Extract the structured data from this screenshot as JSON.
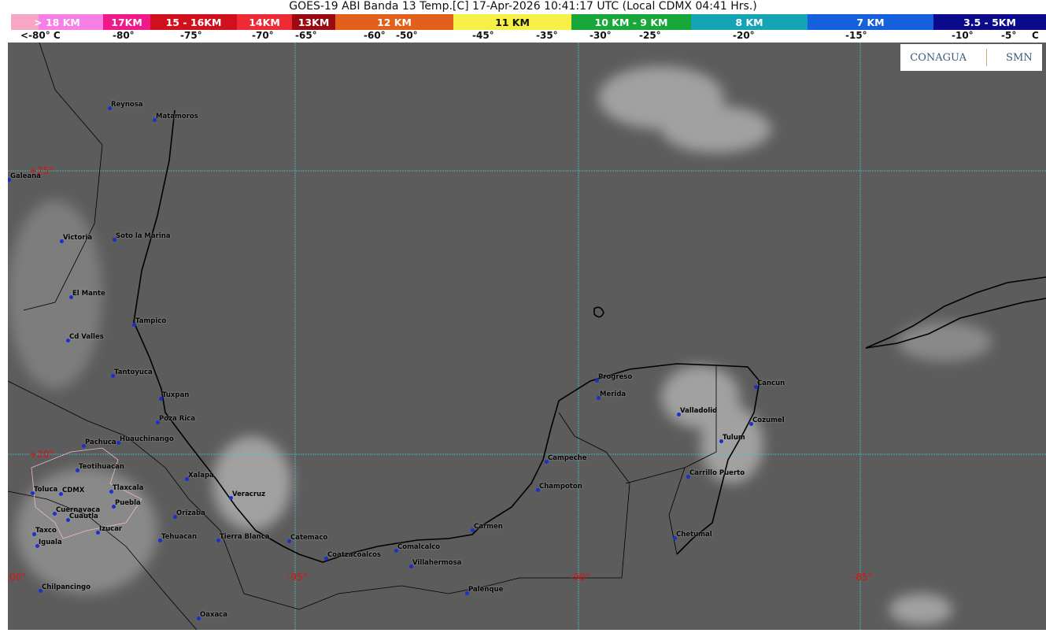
{
  "title": "GOES-19 ABI Banda 13 Temp.[C] 17-Apr-2026 10:41:17 UTC (Local CDMX  04:41 Hrs.)",
  "legend": [
    {
      "label": "> 18 KM",
      "color": "#f77fe6",
      "w": 117
    },
    {
      "label": "17KM",
      "color": "#f0198a",
      "w": 60
    },
    {
      "label": "15 - 16KM",
      "color": "#d0101c",
      "w": 110
    },
    {
      "label": "14KM",
      "color": "#ee2a34",
      "w": 70
    },
    {
      "label": "13KM",
      "color": "#9a0a10",
      "w": 55
    },
    {
      "label": "12 KM",
      "color": "#e3601c",
      "w": 150
    },
    {
      "label": "11 KM",
      "color": "#f6f046",
      "w": 150,
      "dark": true
    },
    {
      "label": "10 KM -  9 KM",
      "color": "#18a83a",
      "w": 152
    },
    {
      "label": "8 KM",
      "color": "#15a3b6",
      "w": 148
    },
    {
      "label": "7 KM",
      "color": "#1560dc",
      "w": 160
    },
    {
      "label": "3.5 - 5KM",
      "color": "#0a0a8a",
      "w": 143
    }
  ],
  "temperature_ticks": [
    "<-80° C",
    "-80°",
    "-75°",
    "-70°",
    "-65°",
    "-60°",
    "-50°",
    "-45°",
    "-35°",
    "-30°",
    "-25°",
    "-20°",
    "-15°",
    "-10°",
    "-5°",
    "C"
  ],
  "grid_labels": [
    "+25°",
    "+20°",
    "-100°",
    "-95°",
    "-90°",
    "-85°"
  ],
  "logo": {
    "left": "CONAGUA",
    "right": "SMN"
  },
  "cities": [
    "Reynosa",
    "Matamoros",
    "Galeana",
    "Victoria",
    "Soto la Marina",
    "El Mante",
    "Tampico",
    "Cd Valles",
    "Tantoyuca",
    "Tuxpan",
    "Poza Rica",
    "Huauchinango",
    "Pachuca",
    "Teotihuacan",
    "Toluca",
    "CDMX",
    "Tlaxcala",
    "Puebla",
    "Cuernavaca",
    "Cuautla",
    "Xalapa",
    "Veracruz",
    "Orizaba",
    "Izucar",
    "Taxco",
    "Iguala",
    "Tehuacan",
    "Tierra Blanca",
    "Catemaco",
    "Coatzacoalcos",
    "Comalcalco",
    "Villahermosa",
    "Chilpancingo",
    "Oaxaca",
    "Palenque",
    "Carmen",
    "Champoton",
    "Campeche",
    "Progreso",
    "Merida",
    "Valladolid",
    "Cancun",
    "Cozumel",
    "Tulum",
    "Carrillo Puerto",
    "Chetumal"
  ],
  "colors": {
    "grid": "#3fc9d0",
    "coast": "#000000",
    "city_dot": "#1a2fd0",
    "grid_label": "#dd1111"
  }
}
